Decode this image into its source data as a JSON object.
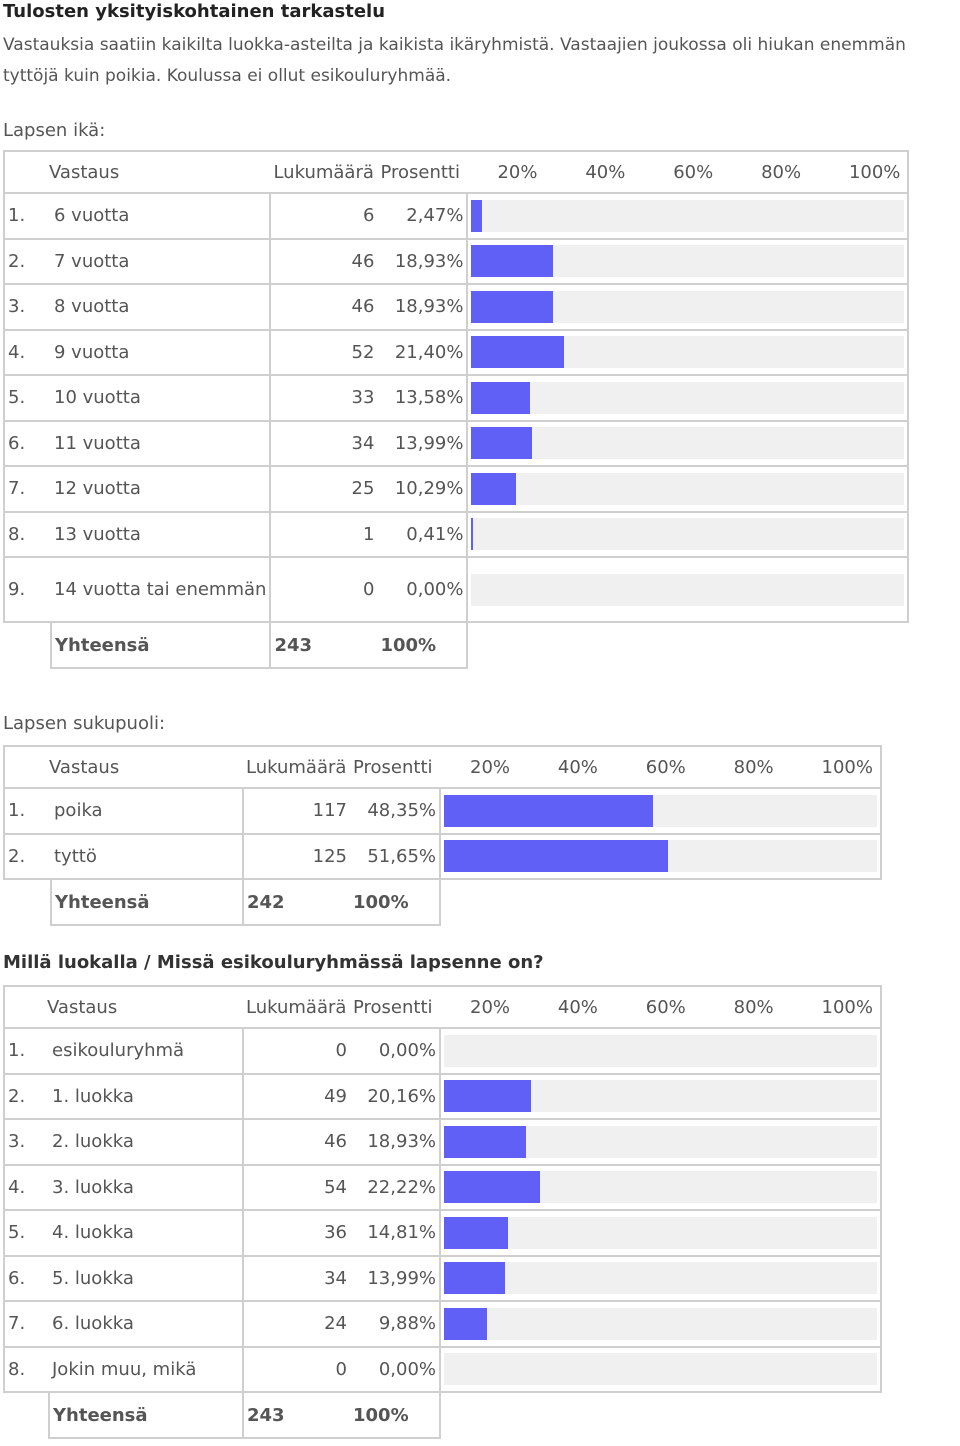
{
  "title": "Tulosten yksityiskohtainen tarkastelu",
  "intro": "Vastauksia saatiin kaikilta luokka-asteilta ja kaikista ikäryhmistä. Vastaajien joukossa oli hiukan enemmän tyttöjä kuin poikia. Koulussa ei ollut esikouluryhmää.",
  "header": {
    "answer": "Vastaus",
    "count": "Lukumäärä",
    "percent": "Prosentti",
    "s20": "20%",
    "s40": "40%",
    "s60": "60%",
    "s80": "80%",
    "s100": "100%"
  },
  "total_label": "Yhteensä",
  "colors": {
    "bar": "#6060f7",
    "track": "#f0f0f0",
    "border": "#cfcfcf"
  },
  "sections": [
    {
      "heading": "Lapsen ikä:",
      "rows": [
        {
          "no": "1.",
          "label": "6 vuotta",
          "count": "6",
          "percent": "2,47%",
          "value": 2.47
        },
        {
          "no": "2.",
          "label": "7 vuotta",
          "count": "46",
          "percent": "18,93%",
          "value": 18.93
        },
        {
          "no": "3.",
          "label": "8 vuotta",
          "count": "46",
          "percent": "18,93%",
          "value": 18.93
        },
        {
          "no": "4.",
          "label": "9 vuotta",
          "count": "52",
          "percent": "21,40%",
          "value": 21.4
        },
        {
          "no": "5.",
          "label": "10 vuotta",
          "count": "33",
          "percent": "13,58%",
          "value": 13.58
        },
        {
          "no": "6.",
          "label": "11 vuotta",
          "count": "34",
          "percent": "13,99%",
          "value": 13.99
        },
        {
          "no": "7.",
          "label": "12 vuotta",
          "count": "25",
          "percent": "10,29%",
          "value": 10.29
        },
        {
          "no": "8.",
          "label": "13 vuotta",
          "count": "1",
          "percent": "0,41%",
          "value": 0.41
        },
        {
          "no": "9.",
          "label": "14 vuotta tai enemmän",
          "count": "0",
          "percent": "0,00%",
          "value": 0
        }
      ],
      "total_count": "243",
      "total_percent": "100%"
    },
    {
      "heading": "Lapsen sukupuoli:",
      "rows": [
        {
          "no": "1.",
          "label": "poika",
          "count": "117",
          "percent": "48,35%",
          "value": 48.35
        },
        {
          "no": "2.",
          "label": "tyttö",
          "count": "125",
          "percent": "51,65%",
          "value": 51.65
        }
      ],
      "total_count": "242",
      "total_percent": "100%"
    },
    {
      "heading": "Millä luokalla / Missä esikouluryhmässä lapsenne on?",
      "rows": [
        {
          "no": "1.",
          "label": "esikouluryhmä",
          "count": "0",
          "percent": "0,00%",
          "value": 0
        },
        {
          "no": "2.",
          "label": "1. luokka",
          "count": "49",
          "percent": "20,16%",
          "value": 20.16
        },
        {
          "no": "3.",
          "label": "2. luokka",
          "count": "46",
          "percent": "18,93%",
          "value": 18.93
        },
        {
          "no": "4.",
          "label": "3. luokka",
          "count": "54",
          "percent": "22,22%",
          "value": 22.22
        },
        {
          "no": "5.",
          "label": "4. luokka",
          "count": "36",
          "percent": "14,81%",
          "value": 14.81
        },
        {
          "no": "6.",
          "label": "5. luokka",
          "count": "34",
          "percent": "13,99%",
          "value": 13.99
        },
        {
          "no": "7.",
          "label": "6. luokka",
          "count": "24",
          "percent": "9,88%",
          "value": 9.88
        },
        {
          "no": "8.",
          "label": "Jokin muu, mikä",
          "count": "0",
          "percent": "0,00%",
          "value": 0
        }
      ],
      "total_count": "243",
      "total_percent": "100%"
    }
  ]
}
